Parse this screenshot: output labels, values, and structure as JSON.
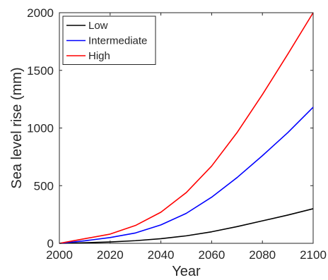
{
  "chart_data": {
    "type": "line",
    "title": "",
    "xlabel": "Year",
    "ylabel": "Sea level rise (mm)",
    "xlim": [
      2000,
      2100
    ],
    "ylim": [
      0,
      2000
    ],
    "xticks": [
      2000,
      2020,
      2040,
      2060,
      2080,
      2100
    ],
    "yticks": [
      0,
      500,
      1000,
      1500,
      2000
    ],
    "grid": false,
    "legend_position": "top-left",
    "x": [
      2000,
      2010,
      2020,
      2030,
      2040,
      2050,
      2060,
      2070,
      2080,
      2090,
      2100
    ],
    "series": [
      {
        "name": "Low",
        "color": "#000000",
        "values": [
          0,
          5,
          12,
          23,
          40,
          65,
          100,
          145,
          195,
          245,
          300
        ]
      },
      {
        "name": "Intermediate",
        "color": "#0000ff",
        "values": [
          0,
          22,
          50,
          90,
          160,
          260,
          400,
          570,
          760,
          960,
          1180
        ]
      },
      {
        "name": "High",
        "color": "#ff0000",
        "values": [
          0,
          40,
          80,
          155,
          270,
          440,
          670,
          960,
          1290,
          1640,
          2000
        ]
      }
    ]
  }
}
